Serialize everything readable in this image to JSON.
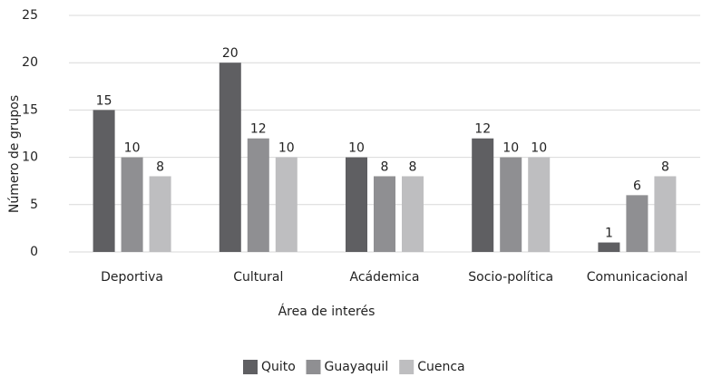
{
  "chart_data": {
    "type": "bar",
    "xlabel": "Área de interés",
    "ylabel": "Número de grupos",
    "categories": [
      "Deportiva",
      "Cultural",
      "Acádemica",
      "Socio-política",
      "Comunicacional"
    ],
    "series": [
      {
        "name": "Quito",
        "color": "#5f5f62",
        "values": [
          15,
          20,
          10,
          12,
          1
        ]
      },
      {
        "name": "Guayaquil",
        "color": "#8f8f92",
        "values": [
          10,
          12,
          8,
          10,
          6
        ]
      },
      {
        "name": "Cuenca",
        "color": "#bebec0",
        "values": [
          8,
          10,
          8,
          10,
          8
        ]
      }
    ],
    "ylim": [
      0,
      25
    ],
    "yticks": [
      0,
      5,
      10,
      15,
      20,
      25
    ],
    "grid": true,
    "legend": "bottom"
  }
}
